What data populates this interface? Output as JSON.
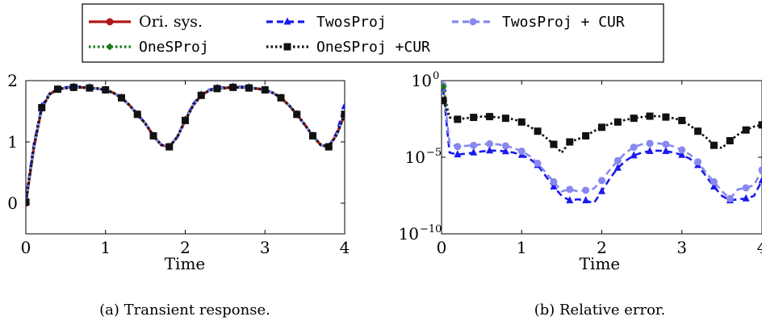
{
  "legend": {
    "entries": [
      {
        "label": "Ori. sys.",
        "color": "#b01818",
        "marker": "circle",
        "dash": "solid",
        "mono": false
      },
      {
        "label": "TwosProj",
        "color": "#1a1aee",
        "marker": "triangle",
        "dash": "dashed",
        "mono": true
      },
      {
        "label": "TwosProj + CUR",
        "color": "#8888ee",
        "marker": "circle",
        "dash": "dashed",
        "mono": true
      },
      {
        "label": "OneSProj",
        "color": "#1a7a1a",
        "marker": "diamond",
        "dash": "dotted",
        "mono": true
      },
      {
        "label": "OneSProj +CUR",
        "color": "#111111",
        "marker": "square",
        "dash": "dotted",
        "mono": true
      }
    ]
  },
  "chart_data": [
    {
      "type": "line",
      "caption": "(a) Transient response.",
      "xlabel": "Time",
      "ylabel": "",
      "xlim": [
        0,
        4
      ],
      "ylim": [
        -0.5,
        2
      ],
      "xticks": [
        0,
        1,
        2,
        3,
        4
      ],
      "yticks": [
        0,
        1,
        2
      ],
      "series": [
        {
          "name": "Ori. sys.",
          "x": [
            0,
            0.1,
            0.2,
            0.3,
            0.4,
            0.5,
            0.6,
            0.7,
            0.8,
            0.9,
            1.0,
            1.1,
            1.2,
            1.3,
            1.4,
            1.5,
            1.6,
            1.7,
            1.8,
            1.9,
            2.0,
            2.1,
            2.2,
            2.3,
            2.4,
            2.5,
            2.6,
            2.7,
            2.8,
            2.9,
            3.0,
            3.1,
            3.2,
            3.3,
            3.4,
            3.5,
            3.6,
            3.7,
            3.8,
            3.9,
            4.0
          ],
          "y": [
            0,
            0.9,
            1.55,
            1.78,
            1.86,
            1.88,
            1.89,
            1.89,
            1.88,
            1.87,
            1.85,
            1.8,
            1.72,
            1.6,
            1.45,
            1.3,
            1.1,
            0.95,
            0.92,
            1.08,
            1.35,
            1.6,
            1.76,
            1.84,
            1.87,
            1.88,
            1.89,
            1.89,
            1.88,
            1.87,
            1.85,
            1.8,
            1.72,
            1.6,
            1.45,
            1.28,
            1.1,
            0.95,
            0.92,
            1.12,
            1.45
          ]
        },
        {
          "name": "TwosProj",
          "x": [
            0,
            0.1,
            0.2,
            0.3,
            0.4,
            0.5,
            0.6,
            0.7,
            0.8,
            0.9,
            1.0,
            1.1,
            1.2,
            1.3,
            1.4,
            1.5,
            1.6,
            1.7,
            1.8,
            1.9,
            2.0,
            2.1,
            2.2,
            2.3,
            2.4,
            2.5,
            2.6,
            2.7,
            2.8,
            2.9,
            3.0,
            3.1,
            3.2,
            3.3,
            3.4,
            3.5,
            3.6,
            3.7,
            3.8,
            3.9,
            4.0
          ],
          "y": [
            0.05,
            0.95,
            1.58,
            1.79,
            1.86,
            1.89,
            1.9,
            1.9,
            1.89,
            1.87,
            1.85,
            1.8,
            1.72,
            1.6,
            1.45,
            1.3,
            1.1,
            0.95,
            0.92,
            1.08,
            1.36,
            1.62,
            1.77,
            1.85,
            1.88,
            1.89,
            1.9,
            1.9,
            1.89,
            1.87,
            1.85,
            1.8,
            1.72,
            1.6,
            1.45,
            1.28,
            1.1,
            0.95,
            0.92,
            1.15,
            1.58
          ]
        },
        {
          "name": "TwosProj + CUR",
          "x": [
            0,
            0.1,
            0.2,
            0.3,
            0.4,
            0.5,
            0.6,
            0.7,
            0.8,
            0.9,
            1.0,
            1.1,
            1.2,
            1.3,
            1.4,
            1.5,
            1.6,
            1.7,
            1.8,
            1.9,
            2.0,
            2.1,
            2.2,
            2.3,
            2.4,
            2.5,
            2.6,
            2.7,
            2.8,
            2.9,
            3.0,
            3.1,
            3.2,
            3.3,
            3.4,
            3.5,
            3.6,
            3.7,
            3.8,
            3.9,
            4.0
          ],
          "y": [
            0.02,
            0.92,
            1.56,
            1.78,
            1.86,
            1.88,
            1.89,
            1.89,
            1.88,
            1.87,
            1.85,
            1.8,
            1.72,
            1.6,
            1.45,
            1.3,
            1.1,
            0.95,
            0.92,
            1.08,
            1.35,
            1.6,
            1.76,
            1.84,
            1.87,
            1.88,
            1.89,
            1.89,
            1.88,
            1.87,
            1.85,
            1.8,
            1.72,
            1.6,
            1.45,
            1.28,
            1.1,
            0.95,
            0.92,
            1.12,
            1.45
          ]
        },
        {
          "name": "OneSProj",
          "x": [
            0,
            0.1,
            0.2,
            0.3,
            0.4,
            0.5,
            0.6,
            0.7,
            0.8,
            0.9,
            1.0,
            1.1,
            1.2,
            1.3,
            1.4,
            1.5,
            1.6,
            1.7,
            1.8,
            1.9,
            2.0,
            2.1,
            2.2,
            2.3,
            2.4,
            2.5,
            2.6,
            2.7,
            2.8,
            2.9,
            3.0,
            3.1,
            3.2,
            3.3,
            3.4,
            3.5,
            3.6,
            3.7,
            3.8,
            3.9,
            4.0
          ],
          "y": [
            0.02,
            0.92,
            1.56,
            1.78,
            1.86,
            1.88,
            1.89,
            1.89,
            1.88,
            1.87,
            1.85,
            1.8,
            1.72,
            1.6,
            1.45,
            1.3,
            1.1,
            0.95,
            0.92,
            1.08,
            1.35,
            1.6,
            1.76,
            1.84,
            1.87,
            1.88,
            1.89,
            1.89,
            1.88,
            1.87,
            1.85,
            1.8,
            1.72,
            1.6,
            1.45,
            1.28,
            1.1,
            0.95,
            0.92,
            1.12,
            1.45
          ]
        },
        {
          "name": "OneSProj +CUR",
          "x": [
            0,
            0.1,
            0.2,
            0.3,
            0.4,
            0.5,
            0.6,
            0.7,
            0.8,
            0.9,
            1.0,
            1.1,
            1.2,
            1.3,
            1.4,
            1.5,
            1.6,
            1.7,
            1.8,
            1.9,
            2.0,
            2.1,
            2.2,
            2.3,
            2.4,
            2.5,
            2.6,
            2.7,
            2.8,
            2.9,
            3.0,
            3.1,
            3.2,
            3.3,
            3.4,
            3.5,
            3.6,
            3.7,
            3.8,
            3.9,
            4.0
          ],
          "y": [
            0.02,
            0.92,
            1.56,
            1.78,
            1.86,
            1.88,
            1.89,
            1.89,
            1.88,
            1.87,
            1.85,
            1.8,
            1.72,
            1.6,
            1.45,
            1.3,
            1.1,
            0.95,
            0.92,
            1.08,
            1.35,
            1.6,
            1.76,
            1.84,
            1.87,
            1.88,
            1.89,
            1.89,
            1.88,
            1.87,
            1.85,
            1.8,
            1.72,
            1.6,
            1.45,
            1.28,
            1.1,
            0.95,
            0.92,
            1.12,
            1.45
          ]
        }
      ]
    },
    {
      "type": "line",
      "caption": "(b) Relative error.",
      "xlabel": "Time",
      "ylabel": "",
      "yscale": "log",
      "xlim": [
        0,
        4
      ],
      "ylim": [
        1e-10,
        1
      ],
      "xticks": [
        0,
        1,
        2,
        3,
        4
      ],
      "yticks": [
        1,
        1e-05,
        1e-10
      ],
      "ytick_labels": [
        {
          "base": "10",
          "exp": "0"
        },
        {
          "base": "10",
          "exp": "−5"
        },
        {
          "base": "10",
          "exp": "−10"
        }
      ],
      "series": [
        {
          "name": "TwosProj",
          "x": [
            0.02,
            0.1,
            0.2,
            0.3,
            0.4,
            0.5,
            0.6,
            0.7,
            0.8,
            0.9,
            1.0,
            1.1,
            1.2,
            1.3,
            1.4,
            1.5,
            1.6,
            1.7,
            1.8,
            1.9,
            2.0,
            2.1,
            2.2,
            2.3,
            2.4,
            2.5,
            2.6,
            2.7,
            2.8,
            2.9,
            3.0,
            3.1,
            3.2,
            3.3,
            3.4,
            3.5,
            3.6,
            3.7,
            3.8,
            3.9,
            4.0
          ],
          "y": [
            0.3,
            2e-05,
            1.5e-05,
            1.7e-05,
            2e-05,
            2.4e-05,
            2.7e-05,
            2.7e-05,
            2.4e-05,
            2e-05,
            1.4e-05,
            8e-06,
            3e-06,
            6e-07,
            1.2e-07,
            3e-08,
            1.5e-08,
            1.8e-08,
            1.5e-08,
            1e-08,
            6e-08,
            4e-07,
            2e-06,
            6e-06,
            1.3e-05,
            2e-05,
            2.5e-05,
            2.7e-05,
            2.5e-05,
            2e-05,
            1.4e-05,
            8e-06,
            3e-06,
            6e-07,
            1.2e-07,
            3e-08,
            1.5e-08,
            1.8e-08,
            2e-08,
            3e-08,
            3e-07
          ]
        },
        {
          "name": "TwosProj + CUR",
          "x": [
            0.02,
            0.1,
            0.2,
            0.3,
            0.4,
            0.5,
            0.6,
            0.7,
            0.8,
            0.9,
            1.0,
            1.1,
            1.2,
            1.3,
            1.4,
            1.5,
            1.6,
            1.7,
            1.8,
            1.9,
            2.0,
            2.1,
            2.2,
            2.3,
            2.4,
            2.5,
            2.6,
            2.7,
            2.8,
            2.9,
            3.0,
            3.1,
            3.2,
            3.3,
            3.4,
            3.5,
            3.6,
            3.7,
            3.8,
            3.9,
            4.0
          ],
          "y": [
            0.5,
            8e-05,
            5e-05,
            5.5e-05,
            6e-05,
            7e-05,
            7.5e-05,
            7e-05,
            5.5e-05,
            4e-05,
            2.5e-05,
            1.2e-05,
            4e-06,
            1e-06,
            2.5e-07,
            6e-08,
            8e-08,
            6e-08,
            7e-08,
            9e-08,
            3e-07,
            1.5e-06,
            6e-06,
            2e-05,
            4.5e-05,
            7e-05,
            8e-05,
            8e-05,
            7e-05,
            5e-05,
            3e-05,
            1.5e-05,
            5e-06,
            1e-06,
            2.5e-07,
            6e-08,
            2e-08,
            8e-08,
            1e-07,
            1.5e-07,
            1.5e-06
          ]
        },
        {
          "name": "OneSProj",
          "x": [
            0.02,
            0.1,
            0.2,
            0.3,
            0.4,
            0.5,
            0.6,
            0.7,
            0.8,
            0.9,
            1.0,
            1.1,
            1.2,
            1.3,
            1.4,
            1.5,
            1.6,
            1.7,
            1.8,
            1.9,
            2.0,
            2.1,
            2.2,
            2.3,
            2.4,
            2.5,
            2.6,
            2.7,
            2.8,
            2.9,
            3.0,
            3.1,
            3.2,
            3.3,
            3.4,
            3.5,
            3.6,
            3.7,
            3.8,
            3.9,
            4.0
          ],
          "y": [
            0.4,
            0.004,
            0.003,
            0.0035,
            0.004,
            0.0045,
            0.0045,
            0.004,
            0.0035,
            0.003,
            0.002,
            0.001,
            0.0005,
            0.0002,
            7e-05,
            2e-05,
            0.0001,
            0.00015,
            0.00025,
            0.0005,
            0.0009,
            0.0015,
            0.002,
            0.0028,
            0.0035,
            0.0042,
            0.0048,
            0.0048,
            0.0042,
            0.0035,
            0.0025,
            0.0012,
            0.0005,
            0.0002,
            6e-05,
            4e-05,
            0.00012,
            0.0003,
            0.0006,
            0.001,
            0.0013
          ]
        },
        {
          "name": "OneSProj +CUR",
          "x": [
            0.02,
            0.1,
            0.2,
            0.3,
            0.4,
            0.5,
            0.6,
            0.7,
            0.8,
            0.9,
            1.0,
            1.1,
            1.2,
            1.3,
            1.4,
            1.5,
            1.6,
            1.7,
            1.8,
            1.9,
            2.0,
            2.1,
            2.2,
            2.3,
            2.4,
            2.5,
            2.6,
            2.7,
            2.8,
            2.9,
            3.0,
            3.1,
            3.2,
            3.3,
            3.4,
            3.5,
            3.6,
            3.7,
            3.8,
            3.9,
            4.0
          ],
          "y": [
            0.05,
            0.004,
            0.003,
            0.0035,
            0.004,
            0.0045,
            0.0045,
            0.004,
            0.0035,
            0.003,
            0.002,
            0.001,
            0.0005,
            0.0002,
            7e-05,
            2e-05,
            0.0001,
            0.00015,
            0.00025,
            0.0005,
            0.0009,
            0.0015,
            0.002,
            0.0028,
            0.0035,
            0.0042,
            0.0048,
            0.0048,
            0.0042,
            0.0035,
            0.0025,
            0.0012,
            0.0005,
            0.0002,
            6e-05,
            4e-05,
            0.00012,
            0.0003,
            0.0006,
            0.001,
            0.0013
          ]
        }
      ]
    }
  ]
}
